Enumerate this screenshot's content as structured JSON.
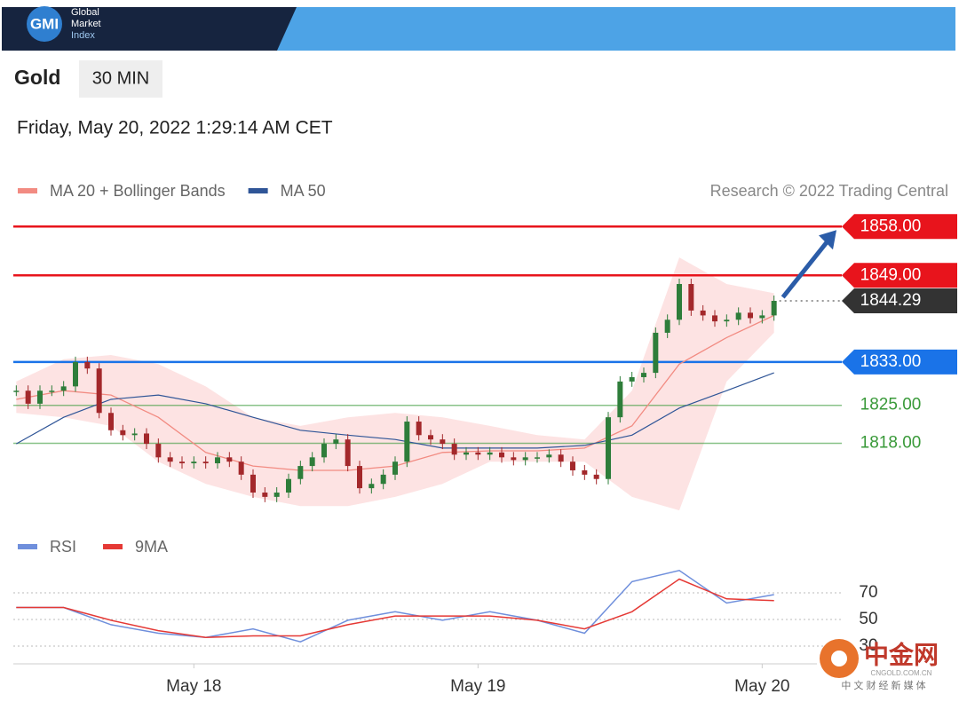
{
  "header": {
    "logo": "GMI",
    "brand": [
      "Global",
      "Market",
      "Index"
    ]
  },
  "instrument": "Gold",
  "interval": "30 MIN",
  "timestamp": "Friday, May 20, 2022 1:29:14 AM CET",
  "chart_data": [
    {
      "type": "candlestick",
      "credit": "Research © 2022 Trading Central",
      "x": [
        -30,
        -28,
        -26,
        -24,
        -22,
        -20,
        -18,
        -16,
        -14,
        -12,
        -10,
        -8,
        -6,
        -4,
        -2,
        0,
        2,
        4,
        6,
        8,
        10,
        12,
        14,
        16,
        18,
        20,
        22,
        24,
        26,
        28,
        30,
        32,
        34,
        36,
        38,
        40,
        42,
        44,
        46,
        48,
        50,
        52,
        54,
        56,
        58,
        60,
        62,
        64,
        66,
        68,
        70,
        72,
        74,
        76,
        78,
        80,
        82,
        84,
        86,
        88,
        90,
        92,
        94,
        96,
        98
      ],
      "close": [
        1827.7,
        1825.3,
        1827.7,
        1827.7,
        1828.5,
        1833,
        1831.8,
        1823.6,
        1820.4,
        1819.5,
        1819.8,
        1817.9,
        1815.4,
        1814.6,
        1814.3,
        1814.6,
        1814.3,
        1815.4,
        1814.6,
        1812.2,
        1808.9,
        1808.1,
        1808.9,
        1811.4,
        1813.8,
        1815.4,
        1817.9,
        1818.7,
        1813.8,
        1809.7,
        1810.5,
        1812.2,
        1814.6,
        1822,
        1819.5,
        1818.7,
        1817.9,
        1815.9,
        1816.3,
        1815.9,
        1816.3,
        1815.4,
        1814.9,
        1815.4,
        1815.4,
        1815.9,
        1814.6,
        1813,
        1812.2,
        1811.4,
        1822.8,
        1829.4,
        1830.2,
        1831,
        1838.4,
        1840.8,
        1847.4,
        1842.5,
        1841.6,
        1840.5,
        1840.8,
        1842.1,
        1841.1,
        1841.6,
        1844.29
      ],
      "up_color": "#2e7d3a",
      "down_color": "#a3282b",
      "series": [
        {
          "name": "MA 20 + Bollinger Bands",
          "color": "#f28b82",
          "band_color": "#fde3e3",
          "x": [
            -30,
            -22,
            -14,
            -6,
            2,
            10,
            18,
            26,
            34,
            42,
            50,
            58,
            66,
            74,
            82,
            90,
            98
          ],
          "values": [
            1826.1,
            1827.7,
            1826.9,
            1822.8,
            1816.3,
            1813.8,
            1813,
            1813,
            1813.8,
            1816.3,
            1816.6,
            1816.6,
            1817.1,
            1821.2,
            1832.6,
            1837.5,
            1841.6
          ],
          "upper": [
            1829.4,
            1833.5,
            1834.3,
            1832.6,
            1828.5,
            1822.8,
            1821.2,
            1822.8,
            1823.6,
            1822.8,
            1821.2,
            1819.5,
            1818.7,
            1827.7,
            1852.3,
            1847.4,
            1845.7
          ],
          "lower": [
            1823.6,
            1822.8,
            1821.2,
            1814.6,
            1810.5,
            1808.1,
            1806.4,
            1806.4,
            1808.1,
            1810.5,
            1814.6,
            1814.6,
            1814.6,
            1808.1,
            1805.6,
            1829.4,
            1838.4
          ]
        },
        {
          "name": "MA 50",
          "color": "#2f5597",
          "x": [
            -30,
            -22,
            -14,
            -6,
            2,
            10,
            18,
            26,
            34,
            42,
            50,
            58,
            66,
            74,
            82,
            90,
            98
          ],
          "values": [
            1817.9,
            1822.8,
            1826.1,
            1826.9,
            1825.3,
            1822.8,
            1820.4,
            1819.5,
            1818.7,
            1817.1,
            1817.1,
            1817.1,
            1817.6,
            1819.5,
            1824.5,
            1827.7,
            1831
          ]
        }
      ],
      "levels": [
        {
          "value": 1858,
          "label": "1858.00",
          "color": "#e8141c",
          "style": "box"
        },
        {
          "value": 1849,
          "label": "1849.00",
          "color": "#e8141c",
          "style": "box"
        },
        {
          "value": 1844.29,
          "label": "1844.29",
          "color": "#333333",
          "style": "current"
        },
        {
          "value": 1833,
          "label": "1833.00",
          "color": "#1a73e8",
          "style": "box"
        },
        {
          "value": 1825,
          "label": "1825.00",
          "color": "#3a9a3a",
          "style": "text"
        },
        {
          "value": 1818,
          "label": "1818.00",
          "color": "#3a9a3a",
          "style": "text"
        }
      ],
      "ylim": [
        1803,
        1861
      ],
      "xlim": [
        -30.5,
        109
      ]
    },
    {
      "type": "line",
      "x": [
        -30,
        -22,
        -14,
        -6,
        2,
        10,
        18,
        26,
        34,
        42,
        50,
        58,
        66,
        74,
        82,
        90,
        98
      ],
      "series": [
        {
          "name": "RSI",
          "color": "#6f8fdc",
          "values": [
            59,
            59,
            46.1,
            39.7,
            36.5,
            42.9,
            33.2,
            49.4,
            55.8,
            49.4,
            55.8,
            49.4,
            39.7,
            78.4,
            86.8,
            62.3,
            68.7
          ]
        },
        {
          "name": "9MA",
          "color": "#e53935",
          "values": [
            59,
            59,
            49.4,
            41.6,
            36.5,
            37.7,
            37.7,
            46.1,
            52.6,
            52.6,
            52.6,
            49.4,
            42.9,
            55.8,
            80.3,
            65.5,
            64.2
          ]
        }
      ],
      "ylim": [
        20,
        92
      ],
      "yticks": [
        70,
        50,
        30
      ],
      "xlim": [
        -30.5,
        109
      ],
      "xticks": [
        {
          "value": 0,
          "label": "May 18"
        },
        {
          "value": 48,
          "label": "May 19"
        },
        {
          "value": 96,
          "label": "May 20"
        }
      ]
    }
  ],
  "watermark": {
    "name": "中金网",
    "site": "CNGOLD.COM.CN",
    "tagline": "中 文 财 经 新 媒 体"
  }
}
